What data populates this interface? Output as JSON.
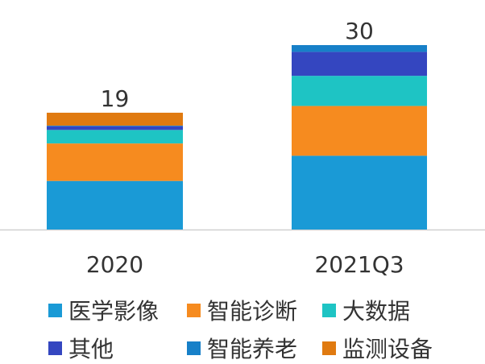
{
  "chart_data": {
    "type": "bar",
    "stacked": true,
    "categories": [
      "2020",
      "2021Q3"
    ],
    "totals": [
      19,
      30
    ],
    "series": [
      {
        "name": "医学影像",
        "values": [
          7.9,
          12.0
        ],
        "color": "#1a9ad6"
      },
      {
        "name": "智能诊断",
        "values": [
          6.1,
          8.1
        ],
        "color": "#f68b1f"
      },
      {
        "name": "大数据",
        "values": [
          2.2,
          4.9
        ],
        "color": "#1ec4c4"
      },
      {
        "name": "其他",
        "values": [
          0.6,
          3.9
        ],
        "color": "#3446c0"
      },
      {
        "name": "智能养老",
        "values": [
          0.1,
          1.1
        ],
        "color": "#1780c8"
      },
      {
        "name": "监测设备",
        "values": [
          2.1,
          0.0
        ],
        "color": "#e07a10"
      }
    ],
    "ylim": [
      0,
      30
    ],
    "grid": false,
    "legend_position": "bottom"
  }
}
